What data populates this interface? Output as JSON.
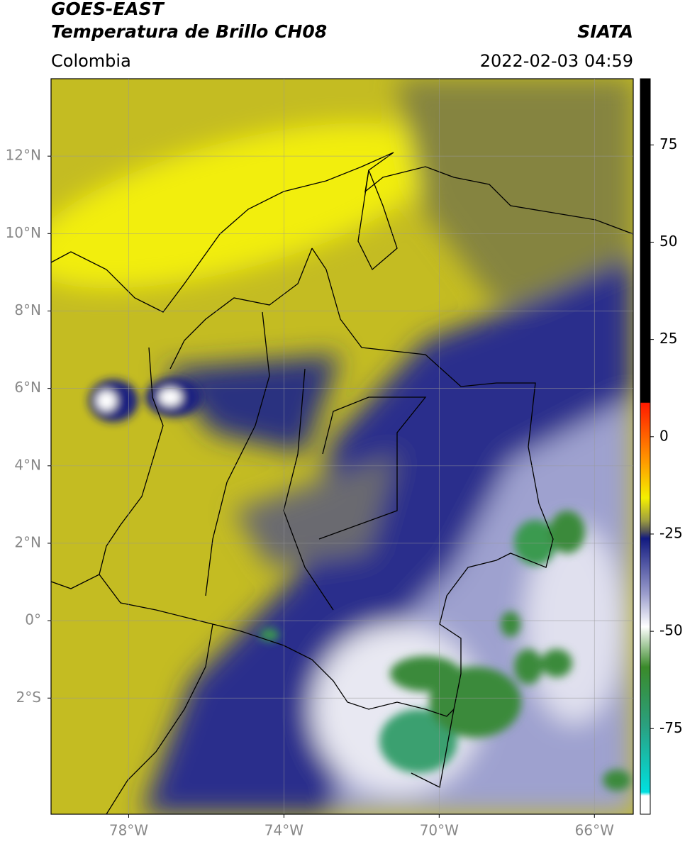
{
  "header": {
    "title": "GOES-EAST",
    "subtitle": "Temperatura de Brillo CH08",
    "source": "SIATA",
    "region": "Colombia",
    "datetime": "2022-02-03 04:59"
  },
  "map": {
    "xlim": [
      -80,
      -65
    ],
    "ylim": [
      -5,
      14
    ],
    "xticks": [
      {
        "value": -78,
        "label": "78°W"
      },
      {
        "value": -74,
        "label": "74°W"
      },
      {
        "value": -70,
        "label": "70°W"
      },
      {
        "value": -66,
        "label": "66°W"
      }
    ],
    "yticks": [
      {
        "value": 12,
        "label": "12°N"
      },
      {
        "value": 10,
        "label": "10°N"
      },
      {
        "value": 8,
        "label": "8°N"
      },
      {
        "value": 6,
        "label": "6°N"
      },
      {
        "value": 4,
        "label": "4°N"
      },
      {
        "value": 2,
        "label": "2°N"
      },
      {
        "value": 0,
        "label": "0°"
      },
      {
        "value": -2,
        "label": "2°S"
      }
    ],
    "grid": true
  },
  "colorbar": {
    "lim": [
      -97,
      92
    ],
    "ticks": [
      75,
      50,
      25,
      0,
      -25,
      -50,
      -75
    ]
  }
}
